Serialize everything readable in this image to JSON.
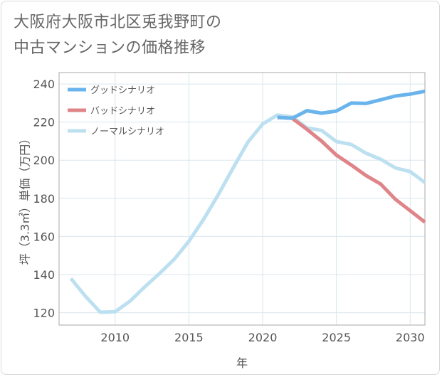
{
  "title_lines": [
    "大阪府大阪市北区兎我野町の",
    "中古マンションの価格推移"
  ],
  "chart_data": {
    "type": "line",
    "title": "大阪府大阪市北区兎我野町の中古マンションの価格推移",
    "xlabel": "年",
    "ylabel": "坪（3.3㎡）単価（万円）",
    "xlim": [
      2006.2,
      2031
    ],
    "ylim": [
      113.5,
      246
    ],
    "xticks": [
      2010,
      2015,
      2020,
      2025,
      2030
    ],
    "yticks": [
      120,
      140,
      160,
      180,
      200,
      220,
      240
    ],
    "grid": true,
    "legend": "top-left",
    "series": [
      {
        "name": "グッドシナリオ",
        "color": "#6ab4ec",
        "x": [
          2021,
          2022,
          2023,
          2024,
          2025,
          2026,
          2027,
          2028,
          2029,
          2030,
          2031
        ],
        "values": [
          222.5,
          222,
          226,
          224.7,
          225.8,
          230,
          229.8,
          231.7,
          233.7,
          234.7,
          236.2
        ]
      },
      {
        "name": "バッドシナリオ",
        "color": "#df8488",
        "x": [
          2021,
          2022,
          2023,
          2024,
          2025,
          2026,
          2027,
          2028,
          2029,
          2030,
          2031
        ],
        "values": [
          222.5,
          222,
          216.2,
          210,
          202.7,
          197.5,
          192,
          187.5,
          179.5,
          173.5,
          167.5
        ]
      },
      {
        "name": "ノーマルシナリオ",
        "color": "#bde0f0",
        "x": [
          2007,
          2008,
          2009,
          2010,
          2011,
          2012,
          2013,
          2014,
          2015,
          2016,
          2017,
          2018,
          2019,
          2020,
          2021,
          2022,
          2023,
          2024,
          2025,
          2026,
          2027,
          2028,
          2029,
          2030,
          2031
        ],
        "values": [
          138,
          128.5,
          120.2,
          120.5,
          126,
          133.5,
          140.5,
          148,
          157.5,
          169,
          182,
          196,
          209.5,
          219,
          223.7,
          222.8,
          217,
          215.6,
          209.8,
          208.3,
          203.7,
          200.5,
          196,
          194,
          188.3
        ]
      }
    ]
  }
}
